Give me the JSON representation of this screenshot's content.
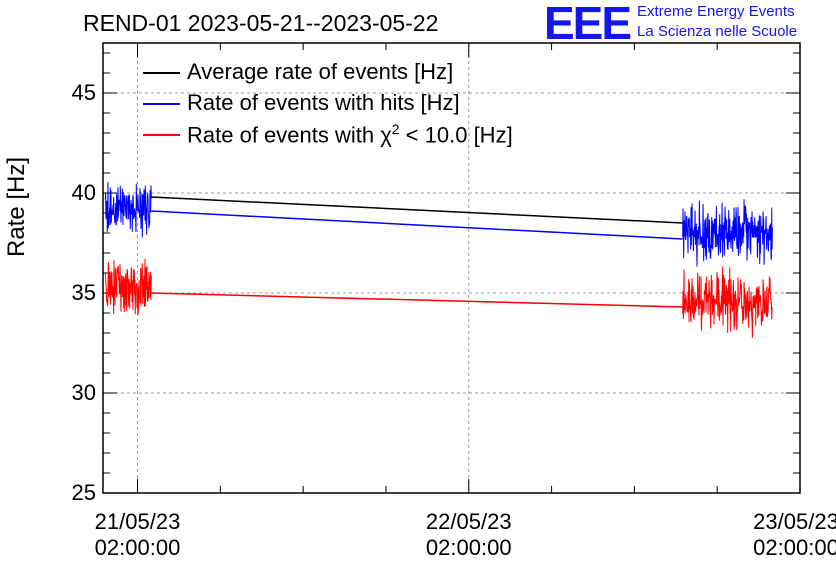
{
  "header": {
    "title": "REND-01 2023-05-21--2023-05-22",
    "logo_mark": "EEE",
    "logo_line1": "Extreme Energy Events",
    "logo_line2": "La Scienza nelle Scuole"
  },
  "chart_data": {
    "type": "line",
    "ylabel": "Rate [Hz]",
    "xlabel": "",
    "ylim": [
      25,
      47.5
    ],
    "xlim": [
      "2023-05-20 23:30:00",
      "2023-05-23 02:00:00"
    ],
    "grid": true,
    "legend_position": "top-left",
    "y_ticks": [
      "25",
      "30",
      "35",
      "40",
      "45"
    ],
    "y_tick_values": [
      25,
      30,
      35,
      40,
      45
    ],
    "x_ticks": [
      {
        "date": "21/05/23",
        "time": "02:00:00",
        "value": "2023-05-21 02:00:00"
      },
      {
        "date": "22/05/23",
        "time": "02:00:00",
        "value": "2023-05-22 02:00:00"
      },
      {
        "date": "23/05/23",
        "time": "02:00:00",
        "value": "2023-05-23 02:00:00"
      }
    ],
    "series": [
      {
        "name": "Average rate of events [Hz]",
        "name_prefix": "Average rate of events [Hz]",
        "name_suffix": "",
        "color": "#000000",
        "segments": [
          {
            "x": [
              "2023-05-21 03:00:00",
              "2023-05-22 17:30:00"
            ],
            "y": [
              39.8,
              38.5
            ]
          }
        ]
      },
      {
        "name": "Rate of events with hits [Hz]",
        "name_prefix": "Rate of events with hits [Hz]",
        "name_suffix": "",
        "color": "#0000ff",
        "noisy": [
          {
            "start": "2023-05-20 23:40:00",
            "end": "2023-05-21 03:00:00",
            "mean": 39.2,
            "amplitude": 1.2
          },
          {
            "start": "2023-05-22 17:30:00",
            "end": "2023-05-23 00:00:00",
            "mean": 38.0,
            "amplitude": 1.4
          }
        ],
        "segments": [
          {
            "x": [
              "2023-05-21 03:00:00",
              "2023-05-22 17:30:00"
            ],
            "y": [
              39.1,
              37.7
            ]
          }
        ]
      },
      {
        "name": "Rate of events with χ2 < 10.0 [Hz]",
        "name_prefix": "Rate of events with χ",
        "name_sup": "2",
        "name_suffix": " < 10.0 [Hz]",
        "color": "#ff0000",
        "noisy": [
          {
            "start": "2023-05-20 23:40:00",
            "end": "2023-05-21 03:00:00",
            "mean": 35.3,
            "amplitude": 1.3
          },
          {
            "start": "2023-05-22 17:30:00",
            "end": "2023-05-23 00:00:00",
            "mean": 34.6,
            "amplitude": 1.4
          }
        ],
        "segments": [
          {
            "x": [
              "2023-05-21 03:00:00",
              "2023-05-22 17:30:00"
            ],
            "y": [
              35.0,
              34.3
            ]
          }
        ]
      }
    ]
  }
}
